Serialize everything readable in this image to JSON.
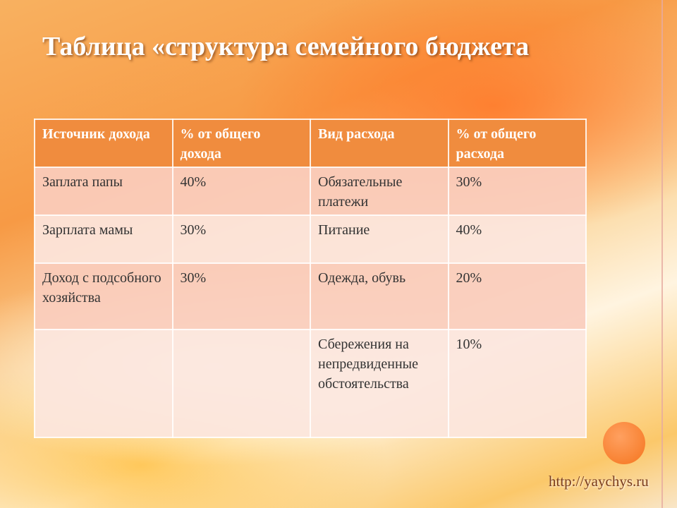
{
  "title": "Таблица «структура семейного бюджета",
  "table": {
    "header": [
      "Источник дохода",
      "% от общего дохода",
      "Вид расхода",
      "% от общего расхода"
    ],
    "rows": [
      [
        "Заплата папы",
        "40%",
        "Обязательные платежи",
        "30%"
      ],
      [
        "Зарплата мамы",
        "30%",
        "Питание",
        "40%"
      ],
      [
        "Доход с подсобного хозяйства",
        "30%",
        "Одежда, обувь",
        "20%"
      ],
      [
        null,
        null,
        "Сбережения на непредвиденные обстоятельства",
        "10%"
      ]
    ]
  },
  "footer": {
    "url": "http://yaychys.ru"
  }
}
